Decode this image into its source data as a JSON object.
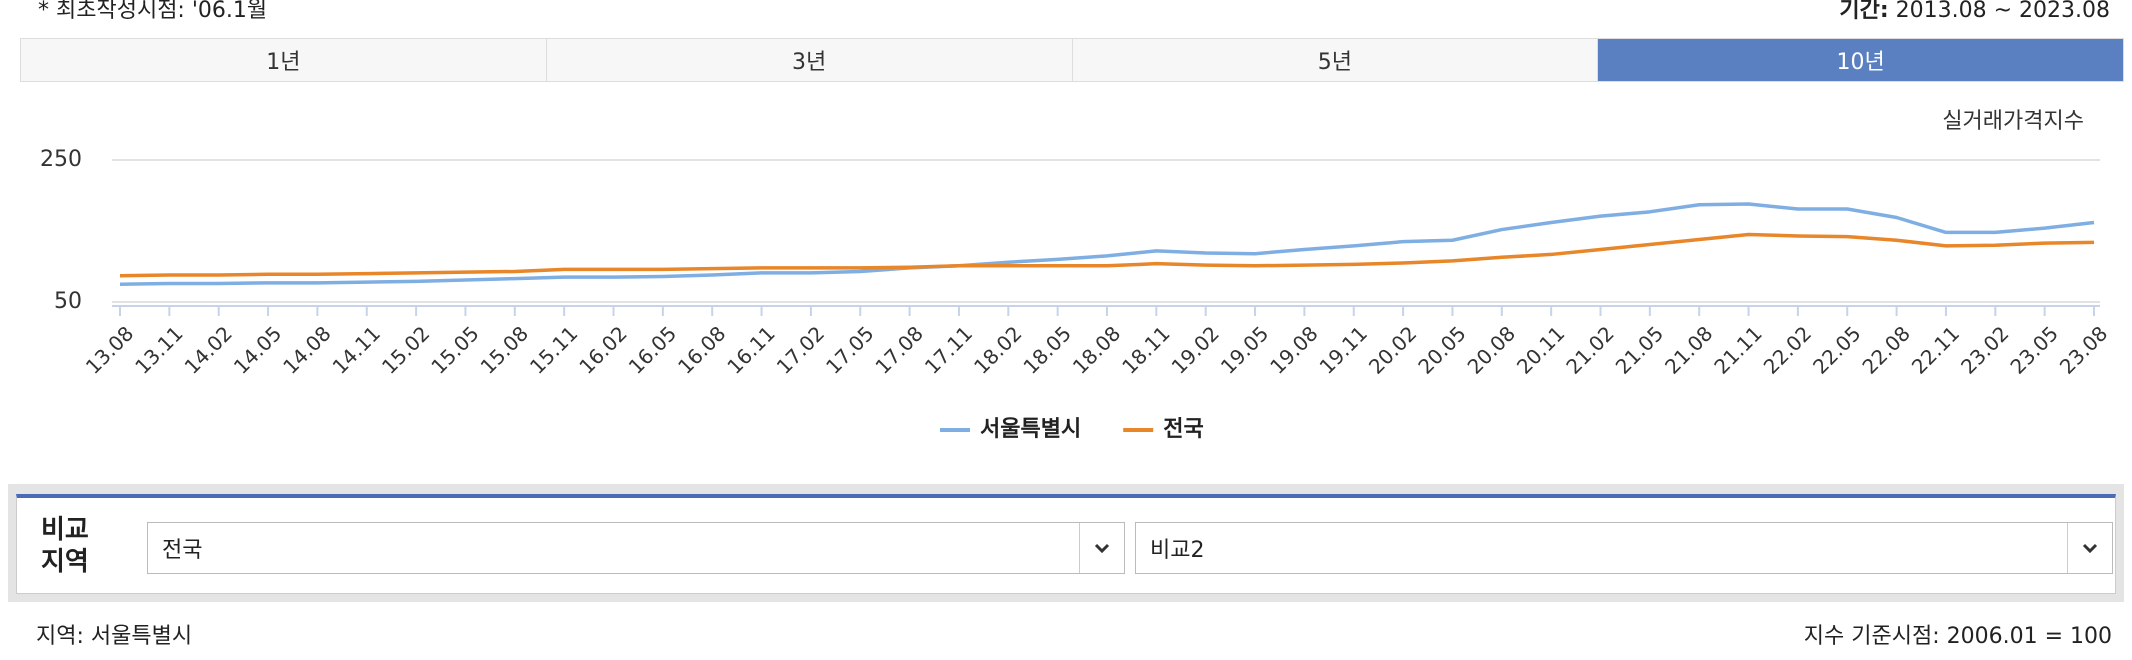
{
  "header": {
    "note": "* 최초작성시점: '06.1월",
    "period_label": "기간:",
    "period": "2013.08 ~ 2023.08"
  },
  "tabs": [
    "1년",
    "3년",
    "5년",
    "10년"
  ],
  "chart_data": {
    "type": "line",
    "y_axis_label": "실거래가격지수",
    "categories": [
      "13.08",
      "13.11",
      "14.02",
      "14.05",
      "14.08",
      "14.11",
      "15.02",
      "15.05",
      "15.08",
      "15.11",
      "16.02",
      "16.05",
      "16.08",
      "16.11",
      "17.02",
      "17.05",
      "17.08",
      "17.11",
      "18.02",
      "18.05",
      "18.08",
      "18.11",
      "19.02",
      "19.05",
      "19.08",
      "19.11",
      "20.02",
      "20.05",
      "20.08",
      "20.11",
      "21.02",
      "21.05",
      "21.08",
      "21.11",
      "22.02",
      "22.05",
      "22.08",
      "22.11",
      "23.02",
      "23.05",
      "23.08"
    ],
    "series": [
      {
        "name": "서울특별시",
        "color": "#7faee3",
        "values": [
          75,
          76,
          76,
          77,
          77,
          78,
          79,
          81,
          83,
          85,
          85,
          86,
          88,
          91,
          91,
          93,
          98,
          101,
          106,
          110,
          115,
          122,
          119,
          118,
          124,
          129,
          135,
          137,
          152,
          162,
          171,
          177,
          187,
          188,
          181,
          181,
          169,
          148,
          148,
          154,
          162
        ]
      },
      {
        "name": "전국",
        "color": "#e8862a",
        "values": [
          87,
          88,
          88,
          89,
          89,
          90,
          91,
          92,
          93,
          96,
          96,
          96,
          97,
          98,
          98,
          98,
          99,
          101,
          101,
          101,
          101,
          104,
          102,
          101,
          102,
          103,
          105,
          108,
          113,
          117,
          124,
          131,
          138,
          145,
          143,
          142,
          137,
          129,
          130,
          133,
          134
        ]
      }
    ],
    "ylim": [
      50,
      250
    ],
    "yticks": [
      50,
      250
    ],
    "grid": true,
    "legend": "bottom"
  },
  "compare": {
    "label_lines": [
      "비교",
      "지역"
    ],
    "select1": "전국",
    "select2": "비교2"
  },
  "footer": {
    "region": "지역: 서울특별시",
    "base": "지수 기준시점: 2006.01 = 100"
  }
}
